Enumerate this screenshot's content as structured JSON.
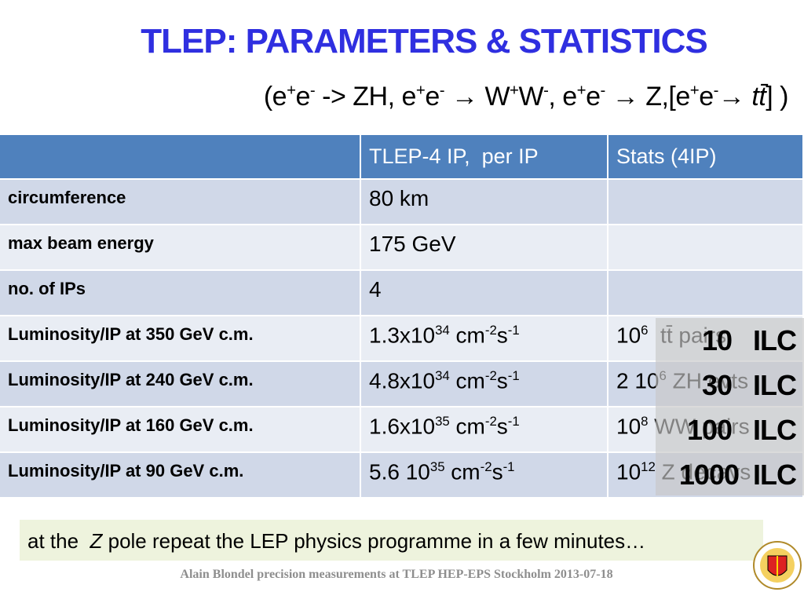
{
  "header": {
    "title": "TLEP: PARAMETERS & STATISTICS",
    "subtitle": [
      {
        "text": "(e"
      },
      {
        "text": "+",
        "sup": true
      },
      {
        "text": "e"
      },
      {
        "text": "-",
        "sup": true
      },
      {
        "text": " -> ZH, e"
      },
      {
        "text": "+",
        "sup": true
      },
      {
        "text": "e"
      },
      {
        "text": "-",
        "sup": true
      },
      {
        "text": " → W"
      },
      {
        "text": "+",
        "sup": true
      },
      {
        "text": "W"
      },
      {
        "text": "-",
        "sup": true
      },
      {
        "text": ", e"
      },
      {
        "text": "+",
        "sup": true
      },
      {
        "text": "e"
      },
      {
        "text": "-",
        "sup": true
      },
      {
        "text": " → Z,[e"
      },
      {
        "text": "+",
        "sup": true
      },
      {
        "text": "e"
      },
      {
        "text": "-",
        "sup": true
      },
      {
        "text": "→ "
      },
      {
        "text": "tt̄",
        "italic": true
      },
      {
        "text": "] )"
      }
    ]
  },
  "table": {
    "header": [
      "",
      "TLEP-4 IP,  per IP",
      "Stats (4IP)"
    ],
    "rows": [
      [
        [
          {
            "text": "circumference"
          }
        ],
        [
          {
            "text": "80 km"
          }
        ],
        []
      ],
      [
        [
          {
            "text": "max beam energy"
          }
        ],
        [
          {
            "text": "175 GeV"
          }
        ],
        []
      ],
      [
        [
          {
            "text": "no. of IPs"
          }
        ],
        [
          {
            "text": "4"
          }
        ],
        []
      ],
      [
        [
          {
            "text": "Luminosity/IP at 350 GeV c.m."
          }
        ],
        [
          {
            "text": "1.3x10"
          },
          {
            "text": "34",
            "sup": true
          },
          {
            "text": " cm"
          },
          {
            "text": "-2",
            "sup": true
          },
          {
            "text": "s"
          },
          {
            "text": "-1",
            "sup": true
          }
        ],
        [
          {
            "text": "10"
          },
          {
            "text": "6",
            "sup": true
          },
          {
            "text": "  tt̄ pairs"
          }
        ]
      ],
      [
        [
          {
            "text": "Luminosity/IP at 240 GeV c.m."
          }
        ],
        [
          {
            "text": "4.8x10"
          },
          {
            "text": "34",
            "sup": true
          },
          {
            "text": " cm"
          },
          {
            "text": "-2",
            "sup": true
          },
          {
            "text": "s"
          },
          {
            "text": "-1",
            "sup": true
          }
        ],
        [
          {
            "text": "2 10"
          },
          {
            "text": "6",
            "sup": true
          },
          {
            "text": " ZH evts"
          }
        ]
      ],
      [
        [
          {
            "text": "Luminosity/IP at 160 GeV c.m."
          }
        ],
        [
          {
            "text": "1.6x10"
          },
          {
            "text": "35",
            "sup": true
          },
          {
            "text": " cm"
          },
          {
            "text": "-2",
            "sup": true
          },
          {
            "text": "s"
          },
          {
            "text": "-1",
            "sup": true
          }
        ],
        [
          {
            "text": "10"
          },
          {
            "text": "8",
            "sup": true
          },
          {
            "text": " WW pairs"
          }
        ]
      ],
      [
        [
          {
            "text": "Luminosity/IP at 90 GeV c.m."
          }
        ],
        [
          {
            "text": "5.6 10"
          },
          {
            "text": "35",
            "sup": true
          },
          {
            "text": " cm"
          },
          {
            "text": "-2",
            "sup": true
          },
          {
            "text": "s"
          },
          {
            "text": "-1",
            "sup": true
          }
        ],
        [
          {
            "text": "10"
          },
          {
            "text": "12",
            "sup": true
          },
          {
            "text": " Z decays"
          }
        ]
      ]
    ]
  },
  "overlay": [
    "10   ILC",
    "30   ILC",
    "100   ILC",
    "1000  ILC"
  ],
  "note": [
    {
      "text": "at the  "
    },
    {
      "text": "Z",
      "italic": true
    },
    {
      "text": " pole repeat the LEP physics programme in a few minutes…"
    }
  ],
  "footer": "Alain Blondel precision measurements at TLEP HEP-EPS Stockholm 2013-07-18"
}
